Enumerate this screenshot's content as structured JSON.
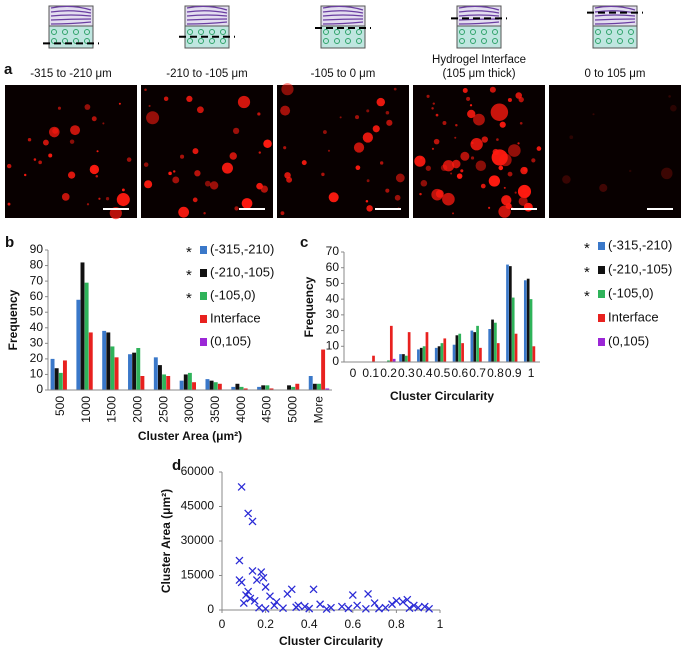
{
  "panel_a": {
    "panel_label": "a",
    "images": [
      {
        "label_lines": [
          "-315 to -210 μm"
        ],
        "cut": 0.85
      },
      {
        "label_lines": [
          "-210 to -105 μm"
        ],
        "cut": 0.7
      },
      {
        "label_lines": [
          "-105 to 0 μm"
        ],
        "cut": 0.5
      },
      {
        "label_lines": [
          "Hydrogel Interface",
          "(105 μm thick)"
        ],
        "cut": 0.28
      },
      {
        "label_lines": [
          "0 to 105 μm"
        ],
        "cut": 0.15
      }
    ]
  },
  "chart_data": [
    {
      "type": "bar",
      "panel_label": "b",
      "x_label": "Cluster Area (μm²)",
      "y_label": "Frequency",
      "categories": [
        "500",
        "1000",
        "1500",
        "2000",
        "2500",
        "3000",
        "3500",
        "4000",
        "4500",
        "5000",
        "More"
      ],
      "ylim": [
        0,
        90
      ],
      "yticks": [
        0,
        10,
        20,
        30,
        40,
        50,
        60,
        70,
        80,
        90
      ],
      "rotate_x_labels": true,
      "series": [
        {
          "name": "(-315,-210)",
          "note": "*",
          "color": "#3a78c9",
          "values": [
            20,
            58,
            38,
            23,
            21,
            6,
            7,
            2,
            2,
            0,
            9
          ]
        },
        {
          "name": "(-210,-105)",
          "note": "*",
          "color": "#111111",
          "values": [
            14,
            82,
            37,
            24,
            16,
            10,
            6,
            4,
            3,
            3,
            4
          ]
        },
        {
          "name": "(-105,0)",
          "note": "*",
          "color": "#2fb35a",
          "values": [
            11,
            69,
            28,
            27,
            10,
            11,
            5,
            2,
            3,
            2,
            4
          ]
        },
        {
          "name": "Interface",
          "color": "#e8211f",
          "values": [
            19,
            37,
            21,
            9,
            9,
            5,
            4,
            1,
            1,
            4,
            26
          ]
        },
        {
          "name": "(0,105)",
          "color": "#9b27d6",
          "values": [
            0,
            0,
            0,
            0,
            0,
            0,
            0,
            0,
            0,
            0,
            1
          ]
        }
      ]
    },
    {
      "type": "bar",
      "panel_label": "c",
      "x_label": "Cluster Circularity",
      "y_label": "Frequency",
      "categories": [
        "0",
        "0.1",
        "0.2",
        "0.3",
        "0.4",
        "0.5",
        "0.6",
        "0.7",
        "0.8",
        "0.9",
        "1"
      ],
      "ylim": [
        0,
        70
      ],
      "yticks": [
        0,
        10,
        20,
        30,
        40,
        50,
        60,
        70
      ],
      "rotate_x_labels": false,
      "series": [
        {
          "name": "(-315,-210)",
          "note": "*",
          "color": "#3a78c9",
          "values": [
            0,
            0,
            0,
            5,
            8,
            9,
            11,
            20,
            21,
            62,
            52
          ]
        },
        {
          "name": "(-210,-105)",
          "note": "*",
          "color": "#111111",
          "values": [
            0,
            0,
            0,
            5,
            9,
            10,
            17,
            19,
            27,
            61,
            53
          ]
        },
        {
          "name": "(-105,0)",
          "note": "*",
          "color": "#2fb35a",
          "values": [
            0,
            0,
            1,
            4,
            10,
            12,
            18,
            23,
            25,
            41,
            40
          ]
        },
        {
          "name": "Interface",
          "color": "#e8211f",
          "values": [
            0,
            4,
            23,
            19,
            19,
            15,
            12,
            9,
            12,
            18,
            10
          ]
        },
        {
          "name": "(0,105)",
          "color": "#9b27d6",
          "values": [
            0,
            0,
            2,
            0,
            0,
            0,
            0,
            0,
            0,
            0,
            0
          ]
        }
      ]
    },
    {
      "type": "scatter",
      "panel_label": "d",
      "x_label": "Cluster Circularity",
      "y_label": "Cluster Area (μm²)",
      "color": "#2b2bd6",
      "xlim": [
        0,
        1
      ],
      "xticks": [
        0,
        0.2,
        0.4,
        0.6,
        0.8,
        1
      ],
      "ylim": [
        0,
        60000
      ],
      "yticks": [
        0,
        15000,
        30000,
        45000,
        60000
      ],
      "x": [
        0.09,
        0.12,
        0.14,
        0.08,
        0.08,
        0.09,
        0.14,
        0.18,
        0.19,
        0.16,
        0.12,
        0.11,
        0.13,
        0.15,
        0.2,
        0.22,
        0.25,
        0.3,
        0.32,
        0.35,
        0.38,
        0.42,
        0.45,
        0.5,
        0.55,
        0.6,
        0.62,
        0.67,
        0.7,
        0.75,
        0.78,
        0.8,
        0.83,
        0.85,
        0.88,
        0.9,
        0.93,
        0.95,
        0.17,
        0.2,
        0.28,
        0.4,
        0.48,
        0.58,
        0.66,
        0.72,
        0.86,
        0.24,
        0.34,
        0.1
      ],
      "y": [
        53500,
        42000,
        38500,
        21500,
        13000,
        12000,
        17000,
        16500,
        14000,
        13000,
        8000,
        6500,
        5000,
        4000,
        10000,
        6000,
        3500,
        7000,
        9000,
        2000,
        1500,
        9000,
        2500,
        1000,
        1500,
        6500,
        2000,
        7000,
        3000,
        1000,
        2500,
        4000,
        3500,
        4500,
        2000,
        1000,
        1500,
        500,
        1000,
        500,
        800,
        600,
        400,
        700,
        500,
        600,
        800,
        2000,
        1200,
        3000
      ]
    }
  ]
}
